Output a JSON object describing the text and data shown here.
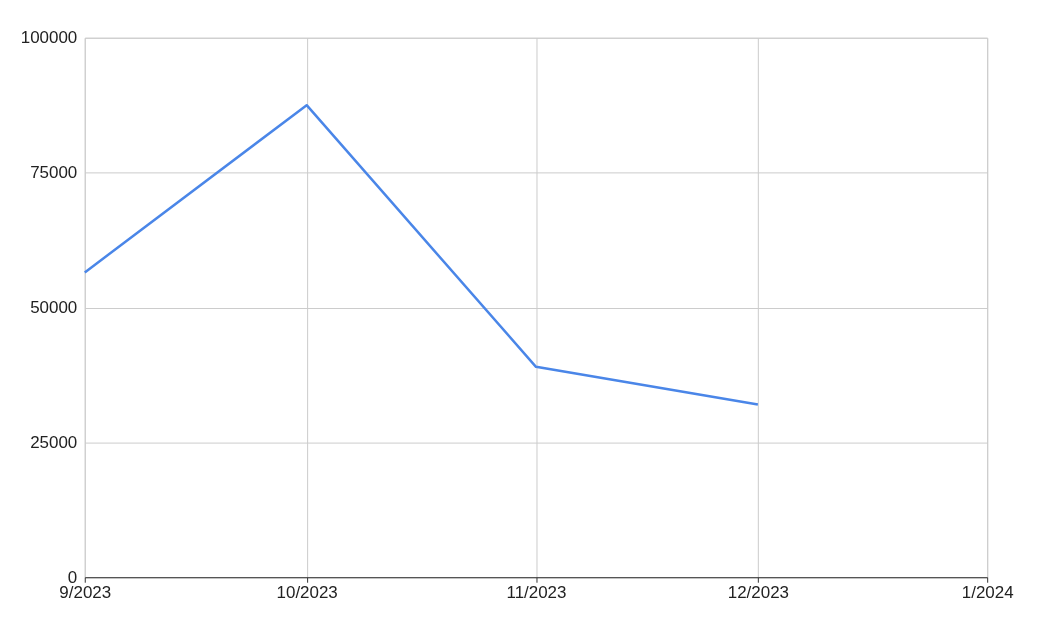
{
  "chart_data": {
    "type": "line",
    "x": [
      "2023-09",
      "2023-10",
      "2023-11",
      "2023-12"
    ],
    "series": [
      {
        "color": "#4a86e8",
        "values": [
          56500,
          87500,
          39000,
          32000
        ]
      }
    ],
    "xlim": [
      "2023-09",
      "2024-01"
    ],
    "xticks": [
      {
        "value": "2023-09",
        "label": "9/2023"
      },
      {
        "value": "2023-10",
        "label": "10/2023"
      },
      {
        "value": "2023-11",
        "label": "11/2023"
      },
      {
        "value": "2023-12",
        "label": "12/2023"
      },
      {
        "value": "2024-01",
        "label": "1/2024"
      }
    ],
    "ylim": [
      0,
      100000
    ],
    "yticks": [
      0,
      25000,
      50000,
      75000,
      100000
    ],
    "grid": true,
    "marker": "none",
    "line_style": "solid"
  }
}
